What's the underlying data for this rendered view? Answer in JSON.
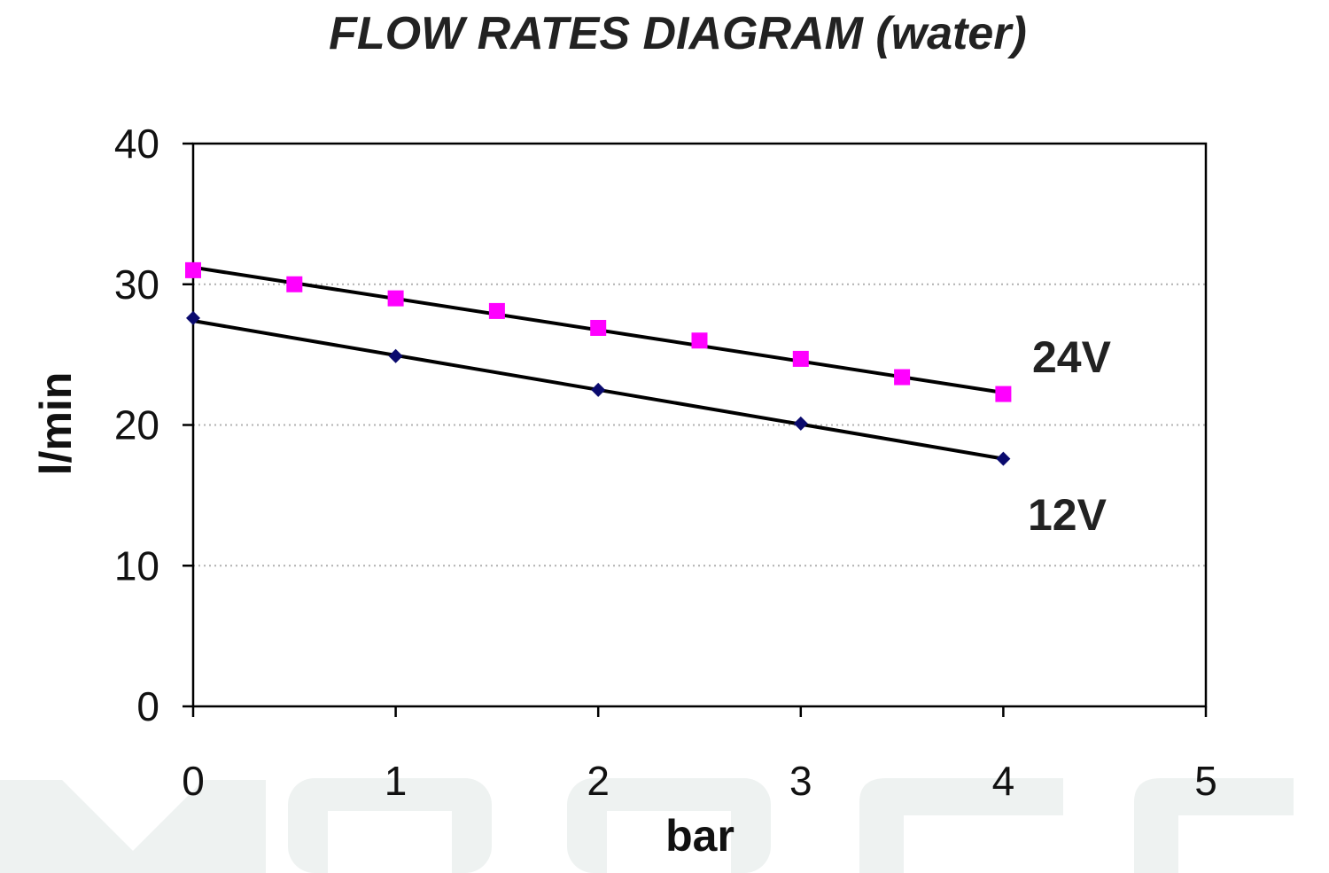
{
  "colors": {
    "series_24v_marker": "#ff00ff",
    "series_12v_marker": "#0a0a6e",
    "trendline": "#000000",
    "gridline": "#b0b0b0",
    "watermark": "#eef2f1"
  },
  "chart_data": {
    "type": "scatter",
    "title": "FLOW RATES DIAGRAM (water)",
    "xlabel": "bar",
    "ylabel": "l/min",
    "xlim": [
      0,
      5
    ],
    "ylim": [
      0,
      40
    ],
    "xticks": [
      "0",
      "1",
      "2",
      "3",
      "4",
      "5"
    ],
    "yticks": [
      "0",
      "10",
      "20",
      "30",
      "40"
    ],
    "grid": "horizontal dotted",
    "series": [
      {
        "name": "24V",
        "marker": "square",
        "x": [
          0,
          0.5,
          1,
          1.5,
          2,
          2.5,
          3,
          3.5,
          4
        ],
        "y": [
          31.0,
          30.0,
          29.0,
          28.1,
          26.9,
          26.0,
          24.7,
          23.4,
          22.2
        ],
        "trendline": [
          31.2,
          22.3
        ]
      },
      {
        "name": "12V",
        "marker": "diamond",
        "x": [
          0,
          1,
          2,
          3,
          4
        ],
        "y": [
          27.6,
          24.9,
          22.5,
          20.1,
          17.6
        ],
        "trendline": [
          27.4,
          17.6
        ]
      }
    ]
  }
}
